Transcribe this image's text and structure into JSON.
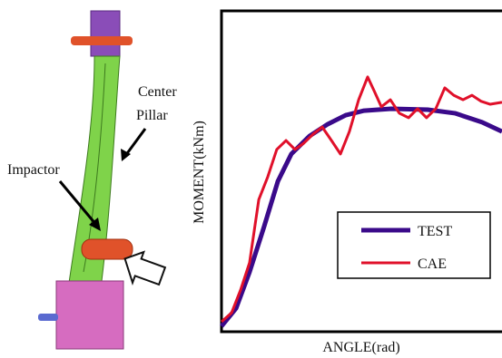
{
  "illustration": {
    "labels": [
      "Center",
      "Pillar",
      "Impactor"
    ]
  },
  "chart_data": {
    "type": "line",
    "x_label": "ANGLE(rad)",
    "y_label": "MOMENT(kNm)",
    "xlim": [
      0,
      100
    ],
    "ylim": [
      0,
      100
    ],
    "series": [
      {
        "name": "TEST",
        "color": "#3a0a8a",
        "x": [
          0,
          5.2,
          10,
          15.2,
          20.1,
          24.9,
          31.4,
          37.9,
          44.3,
          50.8,
          60.5,
          73.5,
          83.2,
          92.9,
          100
        ],
        "values": [
          1.7,
          7.3,
          18.6,
          32.8,
          46.9,
          55.4,
          61,
          64.7,
          67.5,
          68.9,
          69.5,
          69.2,
          68.1,
          65.3,
          62.4
        ]
      },
      {
        "name": "CAE",
        "color": "#e0102a",
        "x": [
          0,
          3.6,
          6.8,
          10,
          13.3,
          16.5,
          19.7,
          23,
          26.2,
          29.4,
          32.7,
          35.9,
          39.2,
          42.4,
          45.6,
          48.9,
          52.1,
          54.4,
          57,
          60.2,
          63.4,
          66.7,
          69.9,
          73.1,
          76.4,
          79.6,
          82.8,
          86.1,
          89.3,
          92.6,
          95.8,
          100
        ],
        "values": [
          3.1,
          5.9,
          13,
          21.5,
          41.2,
          48.3,
          56.8,
          59.6,
          56.8,
          58.8,
          61.6,
          63.8,
          59.6,
          55.4,
          62.4,
          72.3,
          79.4,
          75.1,
          70.1,
          72.3,
          68.1,
          66.7,
          69.5,
          66.7,
          69.5,
          76,
          73.7,
          72.3,
          73.7,
          71.8,
          70.9,
          71.5
        ]
      }
    ]
  }
}
